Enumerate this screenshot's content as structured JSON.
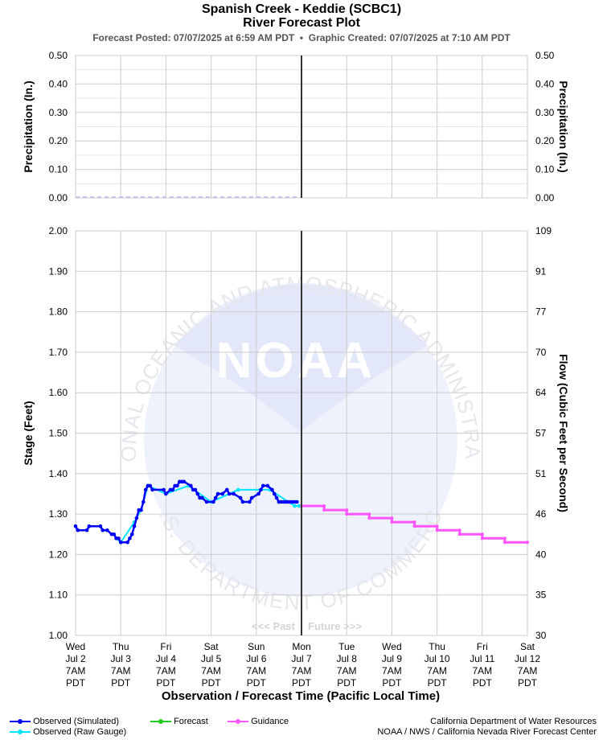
{
  "header": {
    "title_line1": "Spanish Creek - Keddie (SCBC1)",
    "title_line2": "River Forecast Plot",
    "subtitle_posted": "Forecast Posted: 07/07/2025 at 6:59 AM PDT",
    "subtitle_separator": "•",
    "subtitle_created": "Graphic Created: 07/07/2025 at 7:10 AM PDT"
  },
  "watermark": {
    "logo_text": "NOAA",
    "ring_text_top": "NATIONAL OCEANIC AND ATMOSPHERIC ADMINISTRATION",
    "ring_text_bottom": "U.S. DEPARTMENT OF COMMERCE",
    "colors": {
      "light": "#eef2fc",
      "mid": "#e2e7fa"
    }
  },
  "past_future": {
    "past": "<<< Past",
    "future": "Future >>>"
  },
  "legend": {
    "observed_simulated": "Observed (Simulated)",
    "observed_raw": "Observed (Raw Gauge)",
    "forecast": "Forecast",
    "guidance": "Guidance"
  },
  "credits": {
    "line1": "California Department of Water Resources",
    "line2": "NOAA / NWS / California Nevada River Forecast Center"
  },
  "colors": {
    "observed_simulated": "#0000ff",
    "observed_raw": "#00e5ff",
    "forecast": "#22cc22",
    "guidance": "#ff55ff",
    "now_line": "#333333",
    "grid": "#cccccc",
    "precip_line": "#b8b8ee"
  },
  "chart_data": [
    {
      "type": "line",
      "panel": "precipitation",
      "ylabel_left": "Precipitation (In.)",
      "ylabel_right": "Precipitation (In.)",
      "ylim": [
        0,
        0.5
      ],
      "yticks": [
        "0.50",
        "0.40",
        "0.30",
        "0.20",
        "0.10",
        "0.00"
      ],
      "grid": true,
      "series": [
        {
          "role": "observed-precipitation",
          "x_days": [
            0,
            5
          ],
          "values": [
            0,
            0
          ]
        }
      ]
    },
    {
      "type": "line",
      "panel": "stage",
      "ylabel_left": "Stage (Feet)",
      "ylabel_right": "Flow (Cubic Feet per Second)",
      "xlabel": "Observation / Forecast Time (Pacific Local Time)",
      "ylim": [
        1.0,
        2.0
      ],
      "yticks_left": [
        "2.00",
        "1.90",
        "1.80",
        "1.70",
        "1.60",
        "1.50",
        "1.40",
        "1.30",
        "1.20",
        "1.10",
        "1.00"
      ],
      "yticks_right": [
        "109",
        "91",
        "77",
        "70",
        "64",
        "57",
        "51",
        "46",
        "40",
        "35",
        "30"
      ],
      "grid": true,
      "x_ticks": [
        {
          "day": "Wed",
          "date": "Jul 2",
          "time": "7AM",
          "tz": "PDT"
        },
        {
          "day": "Thu",
          "date": "Jul 3",
          "time": "7AM",
          "tz": "PDT"
        },
        {
          "day": "Fri",
          "date": "Jul 4",
          "time": "7AM",
          "tz": "PDT"
        },
        {
          "day": "Sat",
          "date": "Jul 5",
          "time": "7AM",
          "tz": "PDT"
        },
        {
          "day": "Sun",
          "date": "Jul 6",
          "time": "7AM",
          "tz": "PDT"
        },
        {
          "day": "Mon",
          "date": "Jul 7",
          "time": "7AM",
          "tz": "PDT"
        },
        {
          "day": "Tue",
          "date": "Jul 8",
          "time": "7AM",
          "tz": "PDT"
        },
        {
          "day": "Wed",
          "date": "Jul 9",
          "time": "7AM",
          "tz": "PDT"
        },
        {
          "day": "Thu",
          "date": "Jul 10",
          "time": "7AM",
          "tz": "PDT"
        },
        {
          "day": "Fri",
          "date": "Jul 11",
          "time": "7AM",
          "tz": "PDT"
        },
        {
          "day": "Sat",
          "date": "Jul 12",
          "time": "7AM",
          "tz": "PDT"
        }
      ],
      "now_day": 5,
      "series": [
        {
          "name": "Observed (Simulated)",
          "x_days": [
            0,
            0.05,
            0.25,
            0.3,
            0.55,
            0.6,
            0.7,
            0.8,
            0.85,
            0.9,
            0.95,
            1.0,
            1.15,
            1.2,
            1.25,
            1.3,
            1.35,
            1.4,
            1.45,
            1.5,
            1.55,
            1.6,
            1.65,
            1.7,
            1.95,
            2.0,
            2.1,
            2.15,
            2.2,
            2.25,
            2.3,
            2.35,
            2.4,
            2.55,
            2.6,
            2.65,
            2.7,
            2.75,
            2.8,
            2.9,
            3.05,
            3.1,
            3.15,
            3.25,
            3.35,
            3.4,
            3.5,
            3.65,
            3.7,
            3.85,
            3.9,
            4.05,
            4.1,
            4.15,
            4.25,
            4.35,
            4.4,
            4.45,
            4.5,
            4.55,
            4.6,
            4.65,
            4.7,
            4.75,
            4.8,
            4.85,
            4.9
          ],
          "values": [
            1.27,
            1.26,
            1.26,
            1.27,
            1.27,
            1.26,
            1.26,
            1.25,
            1.25,
            1.24,
            1.24,
            1.23,
            1.23,
            1.24,
            1.25,
            1.27,
            1.29,
            1.31,
            1.31,
            1.33,
            1.36,
            1.37,
            1.37,
            1.36,
            1.36,
            1.35,
            1.36,
            1.36,
            1.37,
            1.37,
            1.38,
            1.38,
            1.38,
            1.37,
            1.36,
            1.36,
            1.35,
            1.34,
            1.34,
            1.33,
            1.33,
            1.34,
            1.35,
            1.35,
            1.36,
            1.35,
            1.35,
            1.34,
            1.33,
            1.33,
            1.34,
            1.35,
            1.36,
            1.37,
            1.37,
            1.36,
            1.35,
            1.34,
            1.33,
            1.33,
            1.33,
            1.33,
            1.33,
            1.33,
            1.33,
            1.33,
            1.33
          ]
        },
        {
          "name": "Observed (Raw Gauge)",
          "x_days": [
            0.9,
            1.0,
            1.3,
            1.45,
            1.6,
            2.0,
            2.5,
            3.0,
            3.6,
            4.3,
            4.85,
            4.95
          ],
          "values": [
            1.24,
            1.23,
            1.28,
            1.31,
            1.37,
            1.35,
            1.37,
            1.33,
            1.36,
            1.36,
            1.32,
            1.32
          ]
        },
        {
          "name": "Forecast",
          "x_days": [],
          "values": []
        },
        {
          "name": "Guidance",
          "x_days": [
            5.0,
            5.5,
            5.5,
            6.0,
            6.0,
            6.5,
            6.5,
            7.0,
            7.0,
            7.5,
            7.5,
            8.0,
            8.0,
            8.5,
            8.5,
            9.0,
            9.0,
            9.5,
            9.5,
            10.0
          ],
          "values": [
            1.32,
            1.32,
            1.31,
            1.31,
            1.3,
            1.3,
            1.29,
            1.29,
            1.28,
            1.28,
            1.27,
            1.27,
            1.26,
            1.26,
            1.25,
            1.25,
            1.24,
            1.24,
            1.23,
            1.23
          ]
        }
      ]
    }
  ]
}
